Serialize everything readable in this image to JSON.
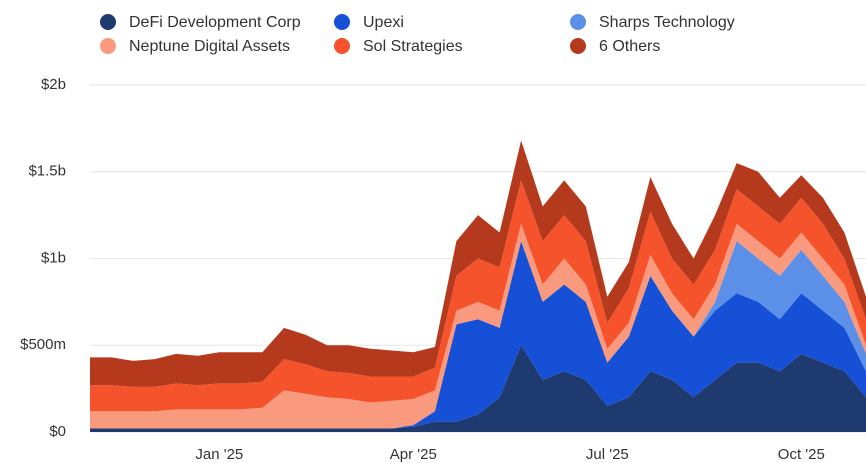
{
  "chart_data": {
    "type": "stacked_area",
    "categories": [
      null,
      null,
      null,
      null,
      null,
      null,
      "Jan '25",
      null,
      null,
      null,
      null,
      null,
      null,
      null,
      null,
      "Apr '25",
      null,
      null,
      null,
      null,
      null,
      null,
      null,
      null,
      "Jul '25",
      null,
      null,
      null,
      null,
      null,
      null,
      null,
      null,
      "Oct '25",
      null,
      null,
      null
    ],
    "series": [
      {
        "name": "DeFi Development Corp",
        "color": "#1f3a6e",
        "values": [
          20,
          20,
          20,
          20,
          20,
          20,
          20,
          20,
          20,
          20,
          20,
          20,
          20,
          20,
          20,
          30,
          60,
          60,
          100,
          200,
          500,
          300,
          350,
          300,
          150,
          200,
          350,
          300,
          200,
          300,
          400,
          400,
          350,
          450,
          400,
          350,
          200
        ]
      },
      {
        "name": "Upexi",
        "color": "#1550d6",
        "values": [
          0,
          0,
          0,
          0,
          0,
          0,
          0,
          0,
          0,
          0,
          0,
          0,
          0,
          0,
          0,
          10,
          60,
          560,
          550,
          400,
          600,
          450,
          500,
          450,
          250,
          350,
          550,
          400,
          350,
          400,
          400,
          350,
          300,
          350,
          300,
          250,
          150
        ]
      },
      {
        "name": "Sharps Technology",
        "color": "#5b8fe8",
        "values": [
          0,
          0,
          0,
          0,
          0,
          0,
          0,
          0,
          0,
          0,
          0,
          0,
          0,
          0,
          0,
          0,
          0,
          0,
          0,
          0,
          0,
          0,
          0,
          0,
          0,
          0,
          0,
          0,
          0,
          50,
          300,
          250,
          250,
          250,
          200,
          150,
          100
        ]
      },
      {
        "name": "Neptune Digital Assets",
        "color": "#f99a7e",
        "values": [
          100,
          100,
          100,
          100,
          110,
          110,
          110,
          110,
          120,
          220,
          200,
          180,
          170,
          150,
          160,
          150,
          120,
          80,
          100,
          100,
          100,
          100,
          150,
          100,
          80,
          80,
          120,
          100,
          100,
          100,
          100,
          100,
          100,
          100,
          100,
          100,
          50
        ]
      },
      {
        "name": "Sol Strategies",
        "color": "#f4532b",
        "values": [
          150,
          150,
          140,
          140,
          150,
          140,
          150,
          150,
          150,
          180,
          170,
          150,
          150,
          150,
          140,
          130,
          130,
          200,
          250,
          250,
          250,
          250,
          250,
          250,
          150,
          200,
          250,
          200,
          200,
          200,
          200,
          200,
          200,
          200,
          200,
          150,
          150
        ]
      },
      {
        "name": "6 Others",
        "color": "#b53a1d",
        "values": [
          160,
          160,
          150,
          160,
          170,
          170,
          180,
          180,
          170,
          180,
          170,
          150,
          160,
          160,
          150,
          140,
          120,
          200,
          250,
          200,
          230,
          200,
          200,
          200,
          150,
          150,
          200,
          200,
          150,
          200,
          150,
          200,
          150,
          130,
          150,
          150,
          130
        ]
      }
    ],
    "ylim": [
      0,
      2000
    ],
    "yticks": [
      {
        "value": 0,
        "label": "$0"
      },
      {
        "value": 500,
        "label": "$500m"
      },
      {
        "value": 1000,
        "label": "$1b"
      },
      {
        "value": 1500,
        "label": "$1.5b"
      },
      {
        "value": 2000,
        "label": "$2b"
      }
    ],
    "grid": true
  }
}
